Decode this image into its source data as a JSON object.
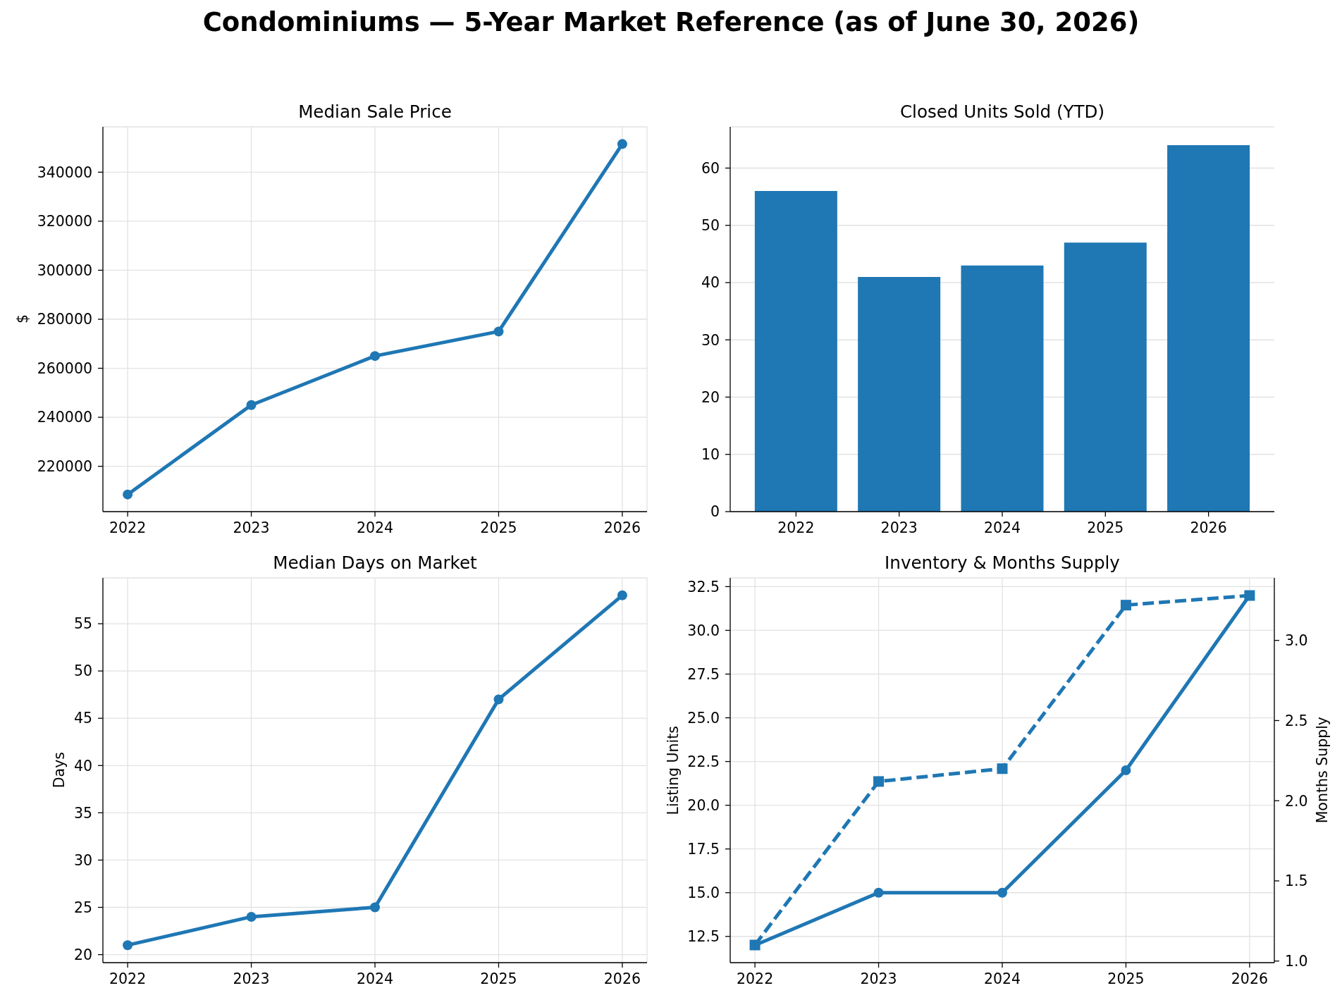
{
  "chart_data": [
    {
      "type": "other",
      "title": "Condominiums — 5-Year Market Reference (as of June 30, 2026)"
    },
    {
      "type": "line",
      "title": "Median Sale Price",
      "ylabel": "$",
      "x": [
        2022,
        2023,
        2024,
        2025,
        2026
      ],
      "xlim": [
        2021.8,
        2026.2
      ],
      "xticks": [
        2022,
        2023,
        2024,
        2025,
        2026
      ],
      "series": [
        {
          "color": "#1f77b4",
          "values": [
            208500,
            245000,
            265000,
            275000,
            351500
          ]
        }
      ],
      "ylim": [
        201500,
        358500
      ],
      "yticks": [
        220000,
        240000,
        260000,
        280000,
        300000,
        320000,
        340000
      ],
      "grid": true,
      "marker": "circle"
    },
    {
      "type": "bar",
      "title": "Closed Units Sold (YTD)",
      "categories": [
        "2022",
        "2023",
        "2024",
        "2025",
        "2026"
      ],
      "series": [
        {
          "color": "#1f77b4",
          "values": [
            56,
            41,
            43,
            47,
            64
          ]
        }
      ],
      "ylim": [
        0,
        67.2
      ],
      "yticks": [
        0,
        10,
        20,
        30,
        40,
        50,
        60
      ],
      "grid": "y"
    },
    {
      "type": "line",
      "title": "Median Days on Market",
      "ylabel": "Days",
      "x": [
        2022,
        2023,
        2024,
        2025,
        2026
      ],
      "xlim": [
        2021.8,
        2026.2
      ],
      "xticks": [
        2022,
        2023,
        2024,
        2025,
        2026
      ],
      "series": [
        {
          "color": "#1f77b4",
          "values": [
            21,
            24,
            25,
            47,
            58
          ]
        }
      ],
      "ylim": [
        19.15,
        59.85
      ],
      "yticks": [
        20,
        25,
        30,
        35,
        40,
        45,
        50,
        55
      ],
      "grid": true,
      "marker": "circle"
    },
    {
      "type": "line",
      "title": "Inventory & Months Supply",
      "ylabel": "Listing Units",
      "y2label": "Months Supply",
      "x": [
        2022,
        2023,
        2024,
        2025,
        2026
      ],
      "xlim": [
        2021.8,
        2026.2
      ],
      "xticks": [
        2022,
        2023,
        2024,
        2025,
        2026
      ],
      "series": [
        {
          "color": "#1f77b4",
          "values": [
            12,
            15,
            15,
            22,
            32
          ]
        },
        {
          "color": "#1f77b4",
          "values": [
            1.1,
            2.12,
            2.2,
            3.22,
            3.28
          ],
          "axis": "y2",
          "marker": "square",
          "line_style": "dashed"
        }
      ],
      "ylim": [
        11,
        33
      ],
      "yticks": [
        12.5,
        {
          "value": 15,
          "label": "15.0"
        },
        17.5,
        {
          "value": 20,
          "label": "20.0"
        },
        22.5,
        {
          "value": 25,
          "label": "25.0"
        },
        27.5,
        {
          "value": 30,
          "label": "30.0"
        },
        32.5
      ],
      "y2lim": [
        0.99,
        3.39
      ],
      "y2ticks": [
        {
          "value": 1,
          "label": "1.0"
        },
        1.5,
        {
          "value": 2,
          "label": "2.0"
        },
        2.5,
        {
          "value": 3,
          "label": "3.0"
        }
      ],
      "grid": true,
      "marker": "circle"
    }
  ]
}
